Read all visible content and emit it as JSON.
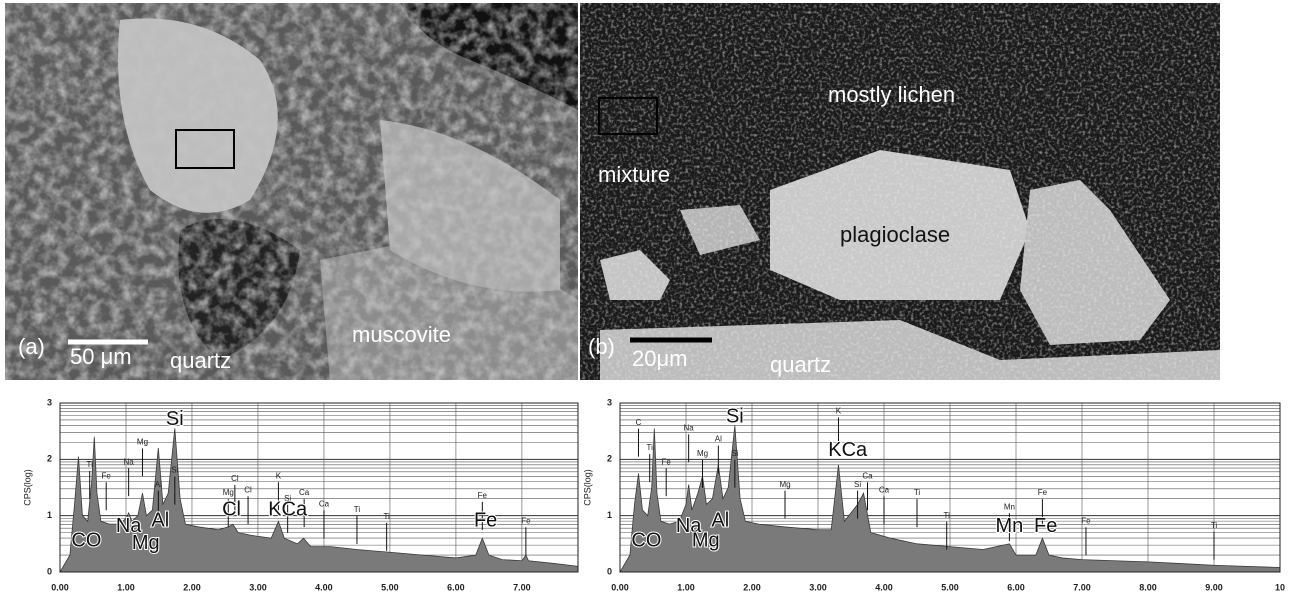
{
  "panels": [
    {
      "letter": "(a)",
      "scale": "50 μm",
      "labels": [
        "quartz",
        "muscovite"
      ]
    },
    {
      "letter": "(b)",
      "scale": "20μm",
      "labels": [
        "quartz",
        "mostly lichen",
        "mixture",
        "plagioclase"
      ]
    }
  ],
  "chart_data": [
    {
      "type": "spectrum",
      "ylabel": "CPS(log)",
      "x": [
        0,
        0.15,
        0.22,
        0.28,
        0.34,
        0.42,
        0.48,
        0.52,
        0.56,
        0.62,
        0.75,
        0.9,
        1.0,
        1.04,
        1.09,
        1.18,
        1.25,
        1.31,
        1.4,
        1.49,
        1.56,
        1.64,
        1.74,
        1.82,
        1.9,
        2.1,
        2.4,
        2.55,
        2.62,
        2.7,
        2.9,
        3.2,
        3.31,
        3.4,
        3.6,
        3.69,
        3.8,
        4.1,
        4.5,
        5.0,
        5.5,
        6.0,
        6.3,
        6.4,
        6.5,
        6.7,
        7.0,
        7.06,
        7.1,
        7.5,
        7.85
      ],
      "values": [
        0,
        0.3,
        1.2,
        2.05,
        1.0,
        0.9,
        1.6,
        2.4,
        1.4,
        0.9,
        0.85,
        0.85,
        0.95,
        1.05,
        0.9,
        1.0,
        1.4,
        1.0,
        1.1,
        2.2,
        1.2,
        1.4,
        2.55,
        1.3,
        0.85,
        0.8,
        0.75,
        0.8,
        0.85,
        0.7,
        0.65,
        0.6,
        0.9,
        0.6,
        0.5,
        0.6,
        0.45,
        0.45,
        0.4,
        0.35,
        0.3,
        0.25,
        0.3,
        0.6,
        0.3,
        0.22,
        0.2,
        0.3,
        0.2,
        0.15,
        0.1
      ],
      "color": "#7a7a7a",
      "xlim": [
        0,
        7.85
      ],
      "ylim": [
        0,
        3
      ],
      "xticks": [
        {
          "value": 0,
          "label": "0.00"
        },
        {
          "value": 1,
          "label": "1.00"
        },
        {
          "value": 2,
          "label": "2.00"
        },
        {
          "value": 3,
          "label": "3.00"
        },
        {
          "value": 4,
          "label": "4.00"
        },
        {
          "value": 5,
          "label": "5.00"
        },
        {
          "value": 6,
          "label": "6.00"
        },
        {
          "value": 7,
          "label": "7.00"
        }
      ],
      "yticks": [
        0,
        1,
        2,
        3
      ],
      "log_grid": true,
      "peak_labels": [
        {
          "text": "Si",
          "x": 1.74,
          "y": 2.7
        },
        {
          "text": "CO",
          "x": 0.4,
          "y": 0.55
        },
        {
          "text": "Na",
          "x": 1.04,
          "y": 0.8
        },
        {
          "text": "Mg",
          "x": 1.3,
          "y": 0.5
        },
        {
          "text": "Al",
          "x": 1.52,
          "y": 0.9
        },
        {
          "text": "Cl",
          "x": 2.6,
          "y": 1.1
        },
        {
          "text": "KCa",
          "x": 3.45,
          "y": 1.1
        },
        {
          "text": "Fe",
          "x": 6.45,
          "y": 0.9
        }
      ],
      "line_markers": [
        {
          "text": "Ti",
          "x": 0.45,
          "y": 1.9
        },
        {
          "text": "Fe",
          "x": 0.7,
          "y": 1.7
        },
        {
          "text": "Na",
          "x": 1.04,
          "y": 1.95
        },
        {
          "text": "Mg",
          "x": 1.25,
          "y": 2.3
        },
        {
          "text": "Al",
          "x": 1.49,
          "y": 1.55
        },
        {
          "text": "Si",
          "x": 1.74,
          "y": 1.8
        },
        {
          "text": "Mg",
          "x": 2.55,
          "y": 1.4
        },
        {
          "text": "Cl",
          "x": 2.65,
          "y": 1.65
        },
        {
          "text": "Cl",
          "x": 2.85,
          "y": 1.45
        },
        {
          "text": "K",
          "x": 3.31,
          "y": 1.7
        },
        {
          "text": "Si",
          "x": 3.45,
          "y": 1.3
        },
        {
          "text": "Ca",
          "x": 3.7,
          "y": 1.4
        },
        {
          "text": "Ca",
          "x": 4.0,
          "y": 1.2
        },
        {
          "text": "Ti",
          "x": 4.5,
          "y": 1.1
        },
        {
          "text": "Ti",
          "x": 4.95,
          "y": 0.98
        },
        {
          "text": "Fe",
          "x": 6.4,
          "y": 1.35
        },
        {
          "text": "Fe",
          "x": 7.06,
          "y": 0.9
        }
      ]
    },
    {
      "type": "spectrum",
      "ylabel": "CPS(log)",
      "x": [
        0,
        0.15,
        0.22,
        0.28,
        0.34,
        0.42,
        0.48,
        0.52,
        0.56,
        0.62,
        0.75,
        0.9,
        1.0,
        1.04,
        1.09,
        1.18,
        1.25,
        1.31,
        1.4,
        1.49,
        1.56,
        1.64,
        1.74,
        1.82,
        1.9,
        2.1,
        2.5,
        3.0,
        3.2,
        3.31,
        3.4,
        3.6,
        3.69,
        3.8,
        4.1,
        4.5,
        5.0,
        5.5,
        5.9,
        6.0,
        6.3,
        6.4,
        6.5,
        6.7,
        7.0,
        7.5,
        8.0,
        8.5,
        9.0,
        9.5,
        10
      ],
      "values": [
        0,
        0.3,
        1.2,
        1.75,
        1.1,
        1.0,
        1.5,
        2.55,
        1.4,
        0.9,
        0.85,
        0.9,
        1.2,
        1.55,
        1.1,
        1.4,
        1.7,
        1.2,
        1.3,
        1.9,
        1.3,
        1.5,
        2.6,
        1.3,
        0.9,
        0.85,
        0.8,
        0.75,
        0.75,
        1.9,
        0.9,
        1.2,
        1.4,
        0.7,
        0.6,
        0.5,
        0.45,
        0.4,
        0.5,
        0.3,
        0.3,
        0.6,
        0.3,
        0.25,
        0.22,
        0.2,
        0.18,
        0.15,
        0.12,
        0.1,
        0.08
      ],
      "color": "#7a7a7a",
      "xlim": [
        0,
        10
      ],
      "ylim": [
        0,
        3
      ],
      "xticks": [
        {
          "value": 0,
          "label": "0.00"
        },
        {
          "value": 1,
          "label": "1.00"
        },
        {
          "value": 2,
          "label": "2.00"
        },
        {
          "value": 3,
          "label": "3.00"
        },
        {
          "value": 4,
          "label": "4.00"
        },
        {
          "value": 5,
          "label": "5.00"
        },
        {
          "value": 6,
          "label": "6.00"
        },
        {
          "value": 7,
          "label": "7.00"
        },
        {
          "value": 8,
          "label": "8.00"
        },
        {
          "value": 9,
          "label": "9.00"
        },
        10
      ],
      "yticks": [
        0,
        1,
        2,
        3
      ],
      "log_grid": true,
      "peak_labels": [
        {
          "text": "Si",
          "x": 1.74,
          "y": 2.75
        },
        {
          "text": "CO",
          "x": 0.4,
          "y": 0.55
        },
        {
          "text": "Na",
          "x": 1.04,
          "y": 0.8
        },
        {
          "text": "Mg",
          "x": 1.3,
          "y": 0.55
        },
        {
          "text": "Al",
          "x": 1.52,
          "y": 0.9
        },
        {
          "text": "KCa",
          "x": 3.45,
          "y": 2.15
        },
        {
          "text": "Mn",
          "x": 5.9,
          "y": 0.8
        },
        {
          "text": "Fe",
          "x": 6.45,
          "y": 0.8
        }
      ],
      "line_markers": [
        {
          "text": "C",
          "x": 0.28,
          "y": 2.65
        },
        {
          "text": "Ti",
          "x": 0.45,
          "y": 2.2
        },
        {
          "text": "Fe",
          "x": 0.7,
          "y": 1.95
        },
        {
          "text": "Na",
          "x": 1.04,
          "y": 2.55
        },
        {
          "text": "Mg",
          "x": 1.25,
          "y": 2.1
        },
        {
          "text": "Al",
          "x": 1.49,
          "y": 2.35
        },
        {
          "text": "Si",
          "x": 1.74,
          "y": 2.1
        },
        {
          "text": "Mg",
          "x": 2.5,
          "y": 1.55
        },
        {
          "text": "K",
          "x": 3.31,
          "y": 2.85
        },
        {
          "text": "Si",
          "x": 3.6,
          "y": 1.55
        },
        {
          "text": "Ca",
          "x": 3.75,
          "y": 1.7
        },
        {
          "text": "Ca",
          "x": 4.0,
          "y": 1.45
        },
        {
          "text": "Ti",
          "x": 4.5,
          "y": 1.4
        },
        {
          "text": "Ti",
          "x": 4.95,
          "y": 1.0
        },
        {
          "text": "Mn",
          "x": 5.9,
          "y": 1.15
        },
        {
          "text": "Fe",
          "x": 6.4,
          "y": 1.4
        },
        {
          "text": "Fe",
          "x": 7.06,
          "y": 0.9
        },
        {
          "text": "Ti",
          "x": 9.0,
          "y": 0.82
        }
      ]
    }
  ]
}
